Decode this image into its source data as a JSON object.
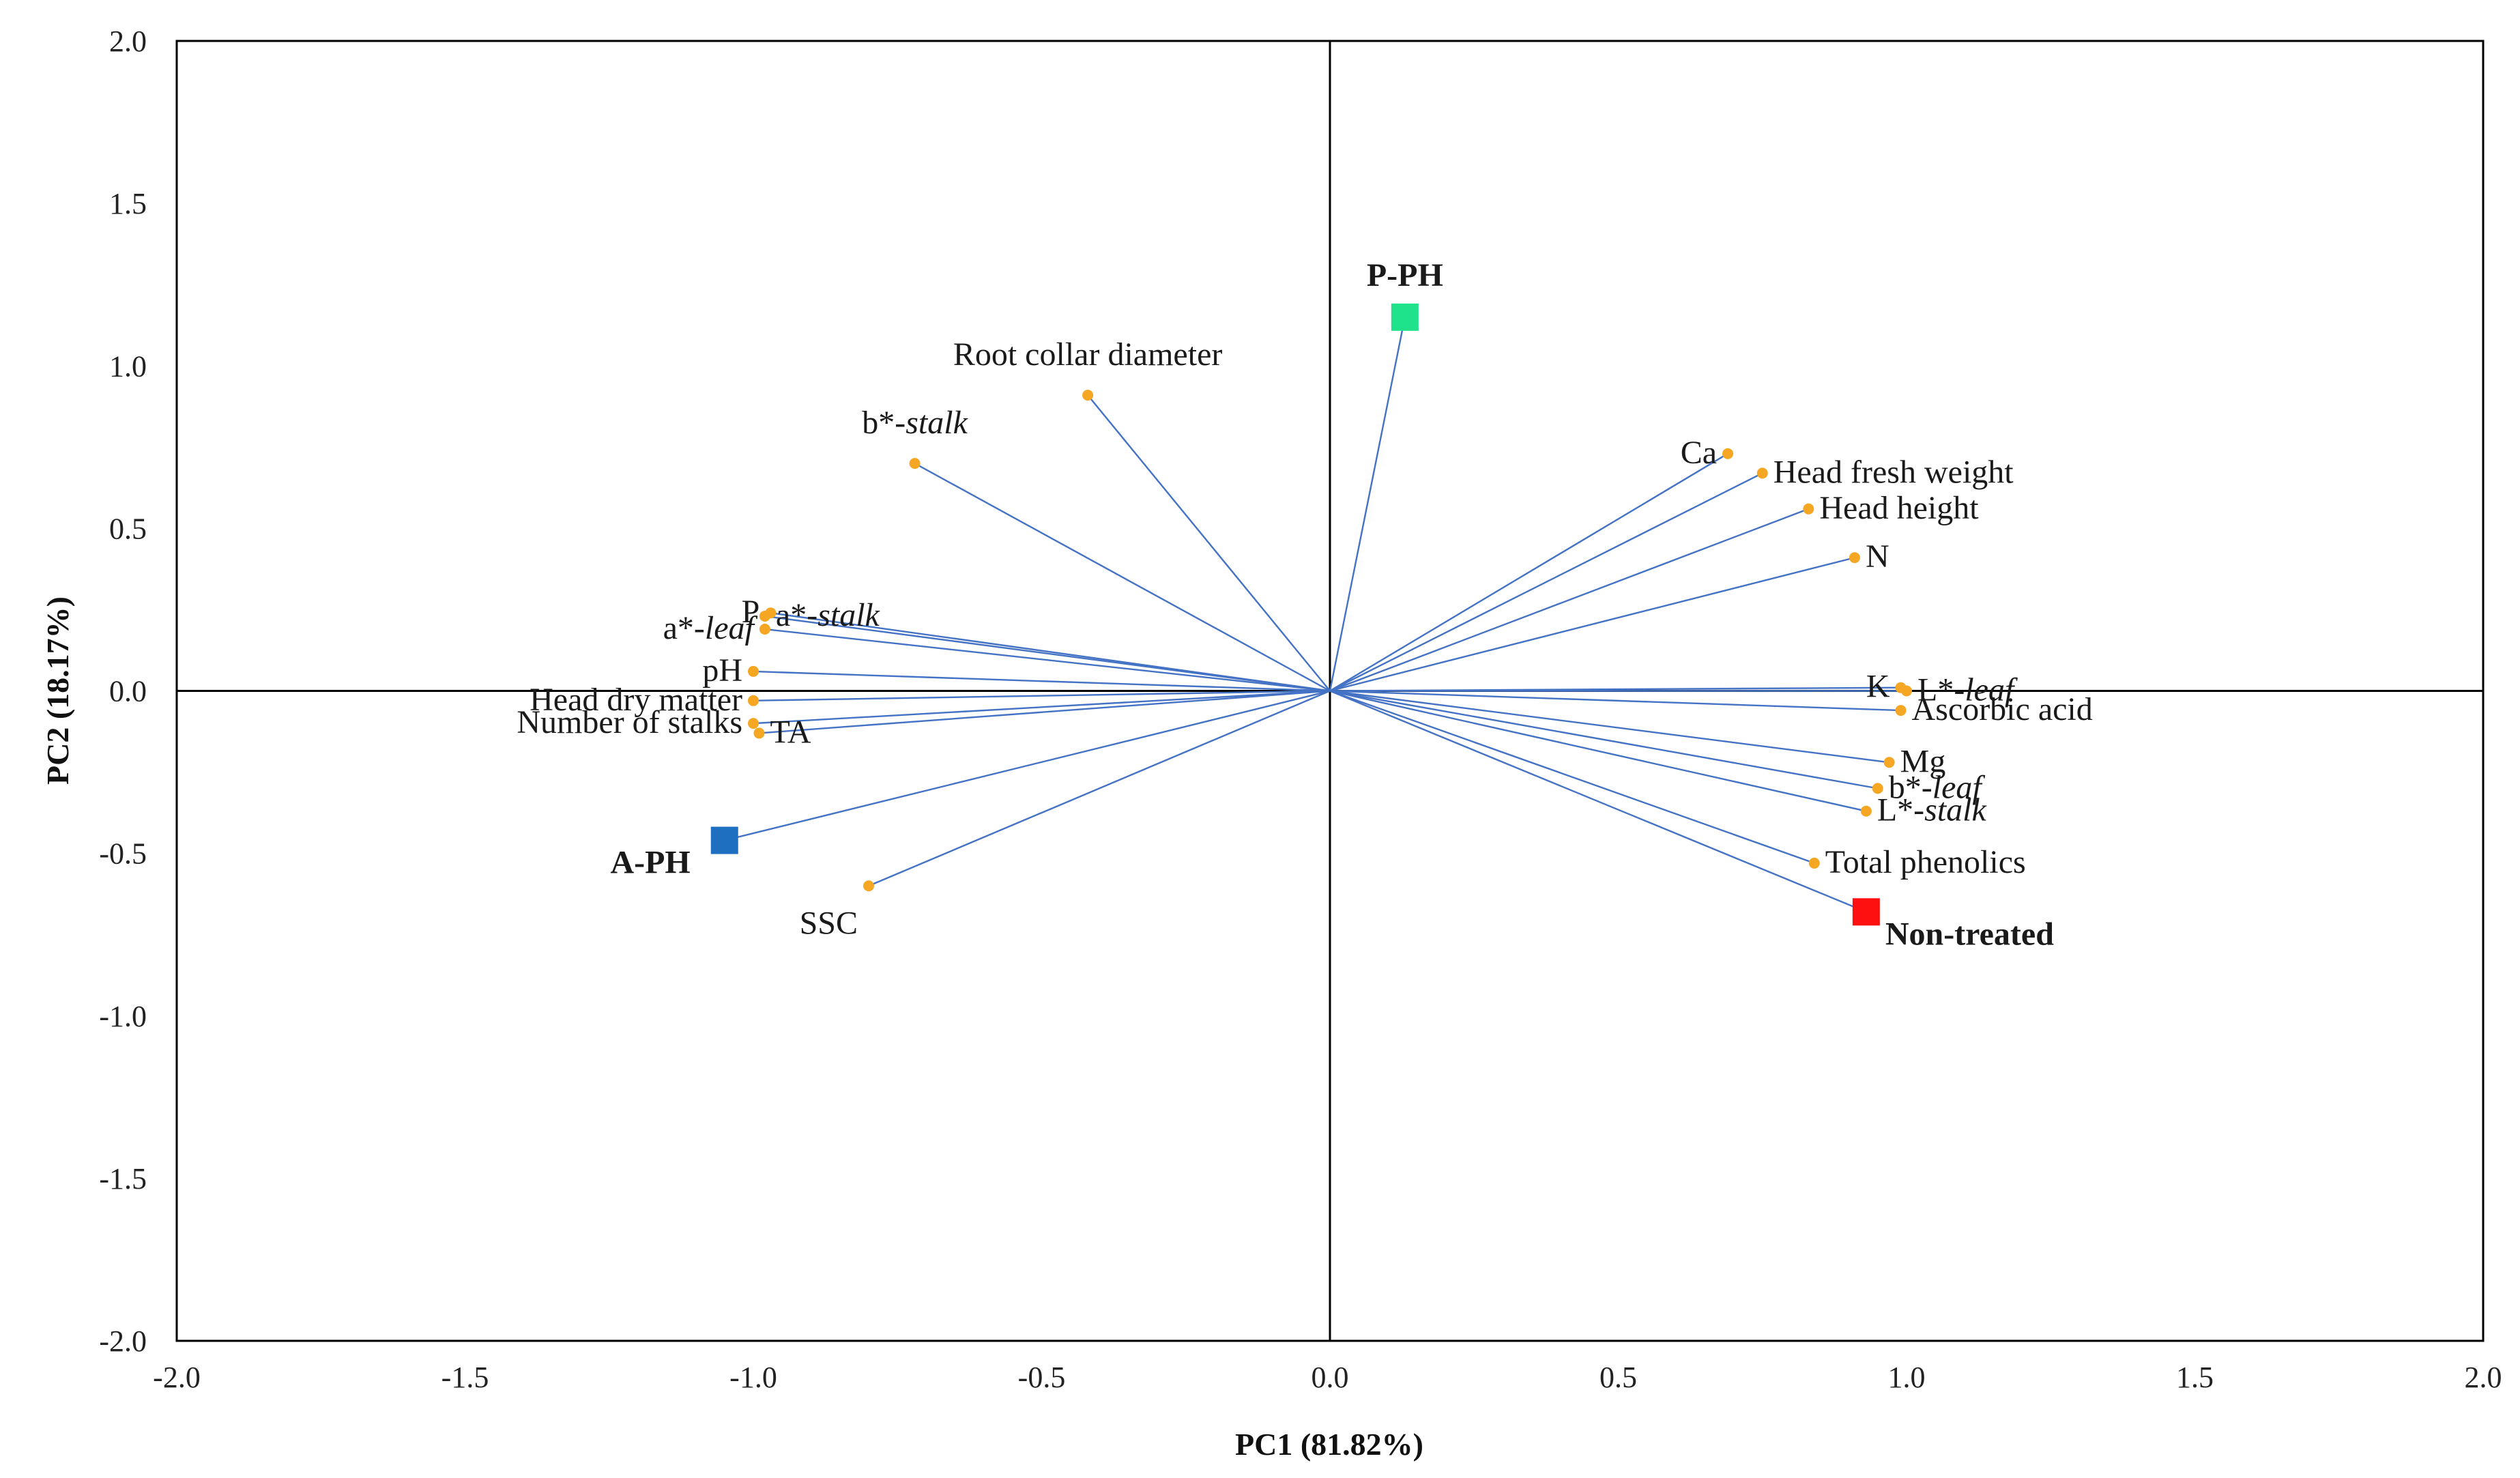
{
  "chart_data": {
    "type": "scatter",
    "subtype": "pca-biplot",
    "title": "",
    "xlabel": "PC1 (81.82%)",
    "ylabel": "PC2 (18.17%)",
    "xlim": [
      -2.0,
      2.0
    ],
    "ylim": [
      -2.0,
      2.0
    ],
    "xticks": [
      -2.0,
      -1.5,
      -1.0,
      -0.5,
      0.0,
      0.5,
      1.0,
      1.5,
      2.0
    ],
    "yticks": [
      -2.0,
      -1.5,
      -1.0,
      -0.5,
      0.0,
      0.5,
      1.0,
      1.5,
      2.0
    ],
    "tick_labels_x": [
      "-2.0",
      "-1.5",
      "-1.0",
      "-0.5",
      "0.0",
      "0.5",
      "1.0",
      "1.5",
      "2.0"
    ],
    "tick_labels_y": [
      "-2.0",
      "-1.5",
      "-1.0",
      "-0.5",
      "0.0",
      "0.5",
      "1.0",
      "1.5",
      "2.0"
    ],
    "grid": false,
    "colors": {
      "vector": "#4472C4",
      "variable_point": "#F5A623",
      "axis": "#000000"
    },
    "variables": [
      {
        "label": "Root collar diameter",
        "italic": "",
        "x": -0.42,
        "y": 0.91,
        "anchor": "middle"
      },
      {
        "label": "b*-",
        "italic": "stalk",
        "x": -0.72,
        "y": 0.7,
        "anchor": "middle"
      },
      {
        "label": "P",
        "italic": "",
        "x": -0.97,
        "y": 0.24,
        "anchor": "end"
      },
      {
        "label": "a*-",
        "italic": "stalk",
        "x": -0.98,
        "y": 0.23,
        "anchor": "start"
      },
      {
        "label": "a*-",
        "italic": "leaf",
        "x": -0.98,
        "y": 0.19,
        "anchor": "end"
      },
      {
        "label": "pH",
        "italic": "",
        "x": -1.0,
        "y": 0.06,
        "anchor": "end"
      },
      {
        "label": "Head dry matter",
        "italic": "",
        "x": -1.0,
        "y": -0.03,
        "anchor": "end"
      },
      {
        "label": "Number of stalks",
        "italic": "",
        "x": -1.0,
        "y": -0.1,
        "anchor": "end"
      },
      {
        "label": "TA",
        "italic": "",
        "x": -0.99,
        "y": -0.13,
        "anchor": "start"
      },
      {
        "label": "SSC",
        "italic": "",
        "x": -0.8,
        "y": -0.6,
        "anchor": "end"
      },
      {
        "label": "Ca",
        "italic": "",
        "x": 0.69,
        "y": 0.73,
        "anchor": "end"
      },
      {
        "label": "Head fresh weight",
        "italic": "",
        "x": 0.75,
        "y": 0.67,
        "anchor": "start"
      },
      {
        "label": "Head height",
        "italic": "",
        "x": 0.83,
        "y": 0.56,
        "anchor": "start"
      },
      {
        "label": "N",
        "italic": "",
        "x": 0.91,
        "y": 0.41,
        "anchor": "start"
      },
      {
        "label": "K",
        "italic": "",
        "x": 0.99,
        "y": 0.01,
        "anchor": "end"
      },
      {
        "label": "L*-",
        "italic": "leaf",
        "x": 1.0,
        "y": 0.0,
        "anchor": "start"
      },
      {
        "label": "Ascorbic acid",
        "italic": "",
        "x": 0.99,
        "y": -0.06,
        "anchor": "start"
      },
      {
        "label": "Mg",
        "italic": "",
        "x": 0.97,
        "y": -0.22,
        "anchor": "start"
      },
      {
        "label": "b*-",
        "italic": "leaf",
        "x": 0.95,
        "y": -0.3,
        "anchor": "start"
      },
      {
        "label": "L*-",
        "italic": "stalk",
        "x": 0.93,
        "y": -0.37,
        "anchor": "start"
      },
      {
        "label": "Total phenolics",
        "italic": "",
        "x": 0.84,
        "y": -0.53,
        "anchor": "start"
      }
    ],
    "treatments": [
      {
        "label": "P-PH",
        "x": 0.13,
        "y": 1.15,
        "color": "#1EE38A"
      },
      {
        "label": "A-PH",
        "x": -1.05,
        "y": -0.46,
        "color": "#1F6FC0"
      },
      {
        "label": "Non-treated",
        "x": 0.93,
        "y": -0.68,
        "color": "#FF1010"
      }
    ]
  }
}
